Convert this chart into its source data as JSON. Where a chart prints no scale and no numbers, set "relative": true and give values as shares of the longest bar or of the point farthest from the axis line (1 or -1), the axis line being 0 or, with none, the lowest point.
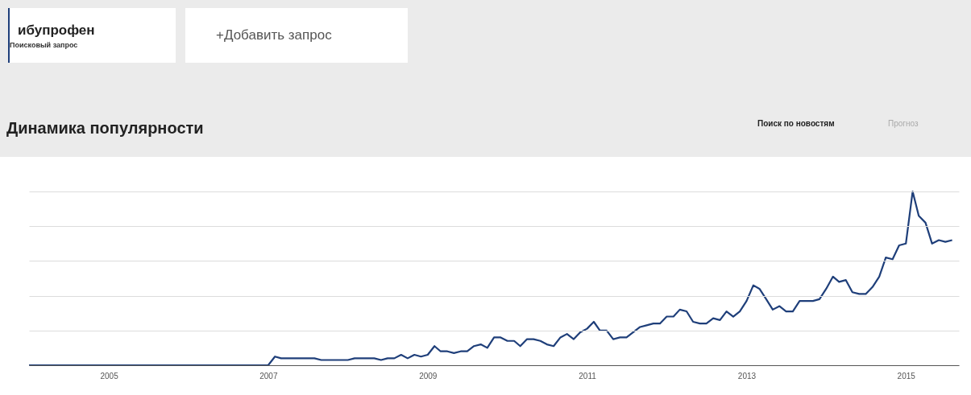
{
  "chart_data": {
    "type": "line",
    "title": "Динамика популярности",
    "relative": true,
    "grid": "y",
    "legend": "top left",
    "line_style": "solid",
    "marker": "none",
    "x": [
      "2004-01",
      "2007-01",
      "2007-02",
      "2007-03",
      "2007-08",
      "2007-09",
      "2008-01",
      "2008-02",
      "2008-05",
      "2008-06",
      "2008-07",
      "2008-08",
      "2008-09",
      "2008-10",
      "2008-11",
      "2008-12",
      "2009-01",
      "2009-02",
      "2009-03",
      "2009-04",
      "2009-05",
      "2009-06",
      "2009-07",
      "2009-08",
      "2009-09",
      "2009-10",
      "2009-11",
      "2009-12",
      "2010-01",
      "2010-02",
      "2010-03",
      "2010-04",
      "2010-05",
      "2010-06",
      "2010-07",
      "2010-08",
      "2010-09",
      "2010-10",
      "2010-11",
      "2010-12",
      "2011-01",
      "2011-02",
      "2011-03",
      "2011-04",
      "2011-05",
      "2011-06",
      "2011-07",
      "2011-08",
      "2011-09",
      "2011-10",
      "2011-11",
      "2011-12",
      "2012-01",
      "2012-02",
      "2012-03",
      "2012-04",
      "2012-05",
      "2012-06",
      "2012-07",
      "2012-08",
      "2012-09",
      "2012-10",
      "2012-11",
      "2012-12",
      "2013-01",
      "2013-02",
      "2013-03",
      "2013-04",
      "2013-05",
      "2013-06",
      "2013-07",
      "2013-08",
      "2013-09",
      "2013-10",
      "2013-11",
      "2013-12",
      "2014-01",
      "2014-02",
      "2014-03",
      "2014-04",
      "2014-05",
      "2014-06",
      "2014-07",
      "2014-08",
      "2014-09",
      "2014-10",
      "2014-11",
      "2014-12",
      "2015-01",
      "2015-02",
      "2015-03",
      "2015-04",
      "2015-05",
      "2015-06",
      "2015-07",
      "2015-08"
    ],
    "series": [
      {
        "name": "ибупрофен",
        "color": "#1f3f7a",
        "values": [
          0,
          0,
          0.05,
          0.04,
          0.04,
          0.03,
          0.03,
          0.04,
          0.04,
          0.03,
          0.04,
          0.04,
          0.06,
          0.04,
          0.06,
          0.05,
          0.06,
          0.11,
          0.08,
          0.08,
          0.07,
          0.08,
          0.08,
          0.11,
          0.12,
          0.1,
          0.16,
          0.16,
          0.14,
          0.14,
          0.11,
          0.15,
          0.15,
          0.14,
          0.12,
          0.11,
          0.16,
          0.18,
          0.15,
          0.19,
          0.21,
          0.25,
          0.2,
          0.2,
          0.15,
          0.16,
          0.16,
          0.19,
          0.22,
          0.23,
          0.24,
          0.24,
          0.28,
          0.28,
          0.32,
          0.31,
          0.25,
          0.24,
          0.24,
          0.27,
          0.26,
          0.31,
          0.28,
          0.31,
          0.37,
          0.46,
          0.44,
          0.38,
          0.32,
          0.34,
          0.31,
          0.31,
          0.37,
          0.37,
          0.37,
          0.38,
          0.44,
          0.51,
          0.48,
          0.49,
          0.42,
          0.41,
          0.41,
          0.45,
          0.51,
          0.62,
          0.61,
          0.69,
          0.7,
          1.0,
          0.86,
          0.82,
          0.7,
          0.72,
          0.71,
          0.72
        ]
      }
    ],
    "xlim": [
      "2004-01",
      "2015-09"
    ],
    "xticks": [
      {
        "value": "2005",
        "label": "2005"
      },
      {
        "value": "2007",
        "label": "2007"
      },
      {
        "value": "2009",
        "label": "2009"
      },
      {
        "value": "2011",
        "label": "2011"
      },
      {
        "value": "2013",
        "label": "2013"
      },
      {
        "value": "2015",
        "label": "2015"
      }
    ],
    "annotations": [
      "Поисковый запрос",
      "+Добавить запрос",
      "Поиск по новостям",
      "Прогноз"
    ]
  }
}
